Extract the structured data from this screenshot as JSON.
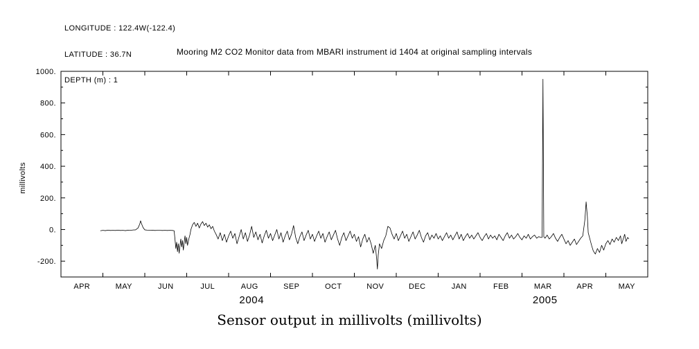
{
  "meta": {
    "longitude": "LONGITUDE : 122.4W(-122.4)",
    "latitude": "LATITUDE : 36.7N",
    "depth": "DEPTH (m) : 1"
  },
  "title": "Mooring M2 CO2 Monitor data from MBARI instrument id 1404 at original sampling intervals",
  "bottom_title": "Sensor output in millivolts (millivolts)",
  "chart_data": {
    "type": "line",
    "title": "Mooring M2 CO2 Monitor data from MBARI instrument id 1404 at original sampling intervals",
    "xlabel": "",
    "ylabel": "millivolts",
    "ylim": [
      -300,
      1000
    ],
    "x_domain_months": [
      0,
      14
    ],
    "grid": false,
    "line_color": "#000000",
    "y_ticks": [
      {
        "value": 1000,
        "label": "1000."
      },
      {
        "value": 800,
        "label": "800."
      },
      {
        "value": 600,
        "label": "600."
      },
      {
        "value": 400,
        "label": "400."
      },
      {
        "value": 200,
        "label": "200."
      },
      {
        "value": 0,
        "label": "0."
      },
      {
        "value": -200,
        "label": "-200."
      }
    ],
    "x_months": [
      "APR",
      "MAY",
      "JUN",
      "JUL",
      "AUG",
      "SEP",
      "OCT",
      "NOV",
      "DEC",
      "JAN",
      "FEB",
      "MAR",
      "APR",
      "MAY"
    ],
    "year_labels": [
      {
        "label": "2004",
        "month_x": 4.55
      },
      {
        "label": "2005",
        "month_x": 11.55
      }
    ],
    "series": [
      {
        "name": "sensor_output_mV",
        "points": [
          [
            0.94,
            -8
          ],
          [
            1.0,
            -5
          ],
          [
            1.06,
            -7
          ],
          [
            1.12,
            -4
          ],
          [
            1.18,
            -6
          ],
          [
            1.24,
            -5
          ],
          [
            1.3,
            -6
          ],
          [
            1.36,
            -4
          ],
          [
            1.42,
            -6
          ],
          [
            1.48,
            -5
          ],
          [
            1.54,
            -7
          ],
          [
            1.6,
            -4
          ],
          [
            1.66,
            -5
          ],
          [
            1.72,
            -3
          ],
          [
            1.78,
            -2
          ],
          [
            1.84,
            10
          ],
          [
            1.88,
            35
          ],
          [
            1.9,
            55
          ],
          [
            1.92,
            38
          ],
          [
            1.96,
            12
          ],
          [
            2.0,
            -2
          ],
          [
            2.06,
            -4
          ],
          [
            2.12,
            -5
          ],
          [
            2.18,
            -4
          ],
          [
            2.24,
            -6
          ],
          [
            2.3,
            -5
          ],
          [
            2.36,
            -5
          ],
          [
            2.42,
            -6
          ],
          [
            2.48,
            -5
          ],
          [
            2.54,
            -6
          ],
          [
            2.6,
            -5
          ],
          [
            2.66,
            -6
          ],
          [
            2.7,
            -8
          ],
          [
            2.72,
            -60
          ],
          [
            2.74,
            -120
          ],
          [
            2.76,
            -80
          ],
          [
            2.78,
            -140
          ],
          [
            2.8,
            -90
          ],
          [
            2.82,
            -150
          ],
          [
            2.84,
            -100
          ],
          [
            2.86,
            -60
          ],
          [
            2.88,
            -110
          ],
          [
            2.9,
            -70
          ],
          [
            2.92,
            -130
          ],
          [
            2.94,
            -80
          ],
          [
            2.96,
            -40
          ],
          [
            2.98,
            -90
          ],
          [
            3.0,
            -50
          ],
          [
            3.02,
            -100
          ],
          [
            3.05,
            -60
          ],
          [
            3.08,
            -30
          ],
          [
            3.1,
            0
          ],
          [
            3.14,
            30
          ],
          [
            3.18,
            45
          ],
          [
            3.22,
            20
          ],
          [
            3.26,
            40
          ],
          [
            3.3,
            10
          ],
          [
            3.34,
            35
          ],
          [
            3.38,
            50
          ],
          [
            3.42,
            25
          ],
          [
            3.46,
            40
          ],
          [
            3.5,
            15
          ],
          [
            3.54,
            30
          ],
          [
            3.58,
            5
          ],
          [
            3.62,
            20
          ],
          [
            3.66,
            -10
          ],
          [
            3.7,
            -30
          ],
          [
            3.75,
            -60
          ],
          [
            3.8,
            -20
          ],
          [
            3.85,
            -70
          ],
          [
            3.9,
            -30
          ],
          [
            3.95,
            -80
          ],
          [
            4.0,
            -40
          ],
          [
            4.05,
            -10
          ],
          [
            4.1,
            -55
          ],
          [
            4.15,
            -25
          ],
          [
            4.2,
            -90
          ],
          [
            4.25,
            -45
          ],
          [
            4.3,
            0
          ],
          [
            4.35,
            -60
          ],
          [
            4.4,
            -20
          ],
          [
            4.45,
            -75
          ],
          [
            4.5,
            -35
          ],
          [
            4.55,
            20
          ],
          [
            4.6,
            -50
          ],
          [
            4.65,
            -15
          ],
          [
            4.7,
            -65
          ],
          [
            4.75,
            -30
          ],
          [
            4.8,
            -85
          ],
          [
            4.85,
            -40
          ],
          [
            4.9,
            -5
          ],
          [
            4.95,
            -55
          ],
          [
            5.0,
            -25
          ],
          [
            5.05,
            -70
          ],
          [
            5.1,
            -35
          ],
          [
            5.15,
            0
          ],
          [
            5.2,
            -60
          ],
          [
            5.25,
            -20
          ],
          [
            5.3,
            -80
          ],
          [
            5.35,
            -40
          ],
          [
            5.4,
            -10
          ],
          [
            5.45,
            -65
          ],
          [
            5.5,
            -30
          ],
          [
            5.55,
            25
          ],
          [
            5.6,
            -50
          ],
          [
            5.65,
            -90
          ],
          [
            5.7,
            -45
          ],
          [
            5.75,
            -15
          ],
          [
            5.8,
            -70
          ],
          [
            5.85,
            -35
          ],
          [
            5.9,
            -5
          ],
          [
            5.95,
            -60
          ],
          [
            6.0,
            -30
          ],
          [
            6.05,
            -75
          ],
          [
            6.1,
            -40
          ],
          [
            6.15,
            -10
          ],
          [
            6.2,
            -55
          ],
          [
            6.25,
            -25
          ],
          [
            6.3,
            -80
          ],
          [
            6.35,
            -45
          ],
          [
            6.4,
            -15
          ],
          [
            6.45,
            -65
          ],
          [
            6.5,
            -35
          ],
          [
            6.55,
            -5
          ],
          [
            6.6,
            -60
          ],
          [
            6.65,
            -100
          ],
          [
            6.7,
            -50
          ],
          [
            6.75,
            -20
          ],
          [
            6.8,
            -70
          ],
          [
            6.85,
            -40
          ],
          [
            6.9,
            -10
          ],
          [
            6.95,
            -55
          ],
          [
            7.0,
            -30
          ],
          [
            7.05,
            -75
          ],
          [
            7.1,
            -45
          ],
          [
            7.15,
            -110
          ],
          [
            7.2,
            -60
          ],
          [
            7.25,
            -30
          ],
          [
            7.3,
            -80
          ],
          [
            7.35,
            -50
          ],
          [
            7.4,
            -90
          ],
          [
            7.45,
            -150
          ],
          [
            7.5,
            -100
          ],
          [
            7.53,
            -180
          ],
          [
            7.55,
            -250
          ],
          [
            7.57,
            -160
          ],
          [
            7.6,
            -90
          ],
          [
            7.65,
            -120
          ],
          [
            7.7,
            -70
          ],
          [
            7.75,
            -40
          ],
          [
            7.8,
            20
          ],
          [
            7.85,
            10
          ],
          [
            7.9,
            -30
          ],
          [
            7.95,
            -60
          ],
          [
            8.0,
            -25
          ],
          [
            8.05,
            -70
          ],
          [
            8.1,
            -40
          ],
          [
            8.15,
            -10
          ],
          [
            8.2,
            -55
          ],
          [
            8.25,
            -30
          ],
          [
            8.3,
            -75
          ],
          [
            8.35,
            -45
          ],
          [
            8.4,
            -15
          ],
          [
            8.45,
            -60
          ],
          [
            8.5,
            -35
          ],
          [
            8.55,
            -5
          ],
          [
            8.6,
            -50
          ],
          [
            8.65,
            -80
          ],
          [
            8.7,
            -40
          ],
          [
            8.75,
            -20
          ],
          [
            8.8,
            -65
          ],
          [
            8.85,
            -35
          ],
          [
            8.9,
            -55
          ],
          [
            8.95,
            -25
          ],
          [
            9.0,
            -60
          ],
          [
            9.05,
            -40
          ],
          [
            9.1,
            -70
          ],
          [
            9.15,
            -45
          ],
          [
            9.2,
            -20
          ],
          [
            9.25,
            -55
          ],
          [
            9.3,
            -35
          ],
          [
            9.35,
            -65
          ],
          [
            9.4,
            -40
          ],
          [
            9.45,
            -15
          ],
          [
            9.5,
            -60
          ],
          [
            9.55,
            -30
          ],
          [
            9.6,
            -70
          ],
          [
            9.65,
            -45
          ],
          [
            9.7,
            -25
          ],
          [
            9.75,
            -55
          ],
          [
            9.8,
            -35
          ],
          [
            9.85,
            -60
          ],
          [
            9.9,
            -40
          ],
          [
            9.95,
            -20
          ],
          [
            10.0,
            -50
          ],
          [
            10.05,
            -70
          ],
          [
            10.1,
            -45
          ],
          [
            10.15,
            -25
          ],
          [
            10.2,
            -60
          ],
          [
            10.25,
            -35
          ],
          [
            10.3,
            -55
          ],
          [
            10.35,
            -40
          ],
          [
            10.4,
            -65
          ],
          [
            10.45,
            -30
          ],
          [
            10.5,
            -50
          ],
          [
            10.55,
            -70
          ],
          [
            10.6,
            -40
          ],
          [
            10.65,
            -20
          ],
          [
            10.7,
            -55
          ],
          [
            10.75,
            -35
          ],
          [
            10.8,
            -60
          ],
          [
            10.85,
            -45
          ],
          [
            10.9,
            -25
          ],
          [
            10.95,
            -50
          ],
          [
            11.0,
            -65
          ],
          [
            11.05,
            -40
          ],
          [
            11.1,
            -55
          ],
          [
            11.15,
            -30
          ],
          [
            11.2,
            -60
          ],
          [
            11.25,
            -45
          ],
          [
            11.3,
            -35
          ],
          [
            11.35,
            -55
          ],
          [
            11.4,
            -45
          ],
          [
            11.45,
            -50
          ],
          [
            11.48,
            -50
          ],
          [
            11.5,
            950
          ],
          [
            11.52,
            -45
          ],
          [
            11.55,
            -55
          ],
          [
            11.6,
            -35
          ],
          [
            11.65,
            -60
          ],
          [
            11.7,
            -45
          ],
          [
            11.75,
            -25
          ],
          [
            11.8,
            -55
          ],
          [
            11.85,
            -75
          ],
          [
            11.9,
            -50
          ],
          [
            11.95,
            -30
          ],
          [
            12.0,
            -60
          ],
          [
            12.05,
            -90
          ],
          [
            12.1,
            -70
          ],
          [
            12.15,
            -100
          ],
          [
            12.2,
            -80
          ],
          [
            12.25,
            -60
          ],
          [
            12.3,
            -95
          ],
          [
            12.35,
            -75
          ],
          [
            12.4,
            -55
          ],
          [
            12.45,
            -40
          ],
          [
            12.5,
            60
          ],
          [
            12.53,
            175
          ],
          [
            12.56,
            80
          ],
          [
            12.58,
            -20
          ],
          [
            12.62,
            -60
          ],
          [
            12.66,
            -100
          ],
          [
            12.7,
            -135
          ],
          [
            12.75,
            -155
          ],
          [
            12.8,
            -120
          ],
          [
            12.85,
            -145
          ],
          [
            12.9,
            -100
          ],
          [
            12.95,
            -130
          ],
          [
            13.0,
            -90
          ],
          [
            13.05,
            -70
          ],
          [
            13.1,
            -95
          ],
          [
            13.15,
            -60
          ],
          [
            13.2,
            -80
          ],
          [
            13.25,
            -50
          ],
          [
            13.3,
            -70
          ],
          [
            13.35,
            -40
          ],
          [
            13.38,
            -90
          ],
          [
            13.42,
            -55
          ],
          [
            13.45,
            -30
          ],
          [
            13.48,
            -75
          ],
          [
            13.52,
            -50
          ],
          [
            13.55,
            -60
          ]
        ]
      }
    ]
  }
}
